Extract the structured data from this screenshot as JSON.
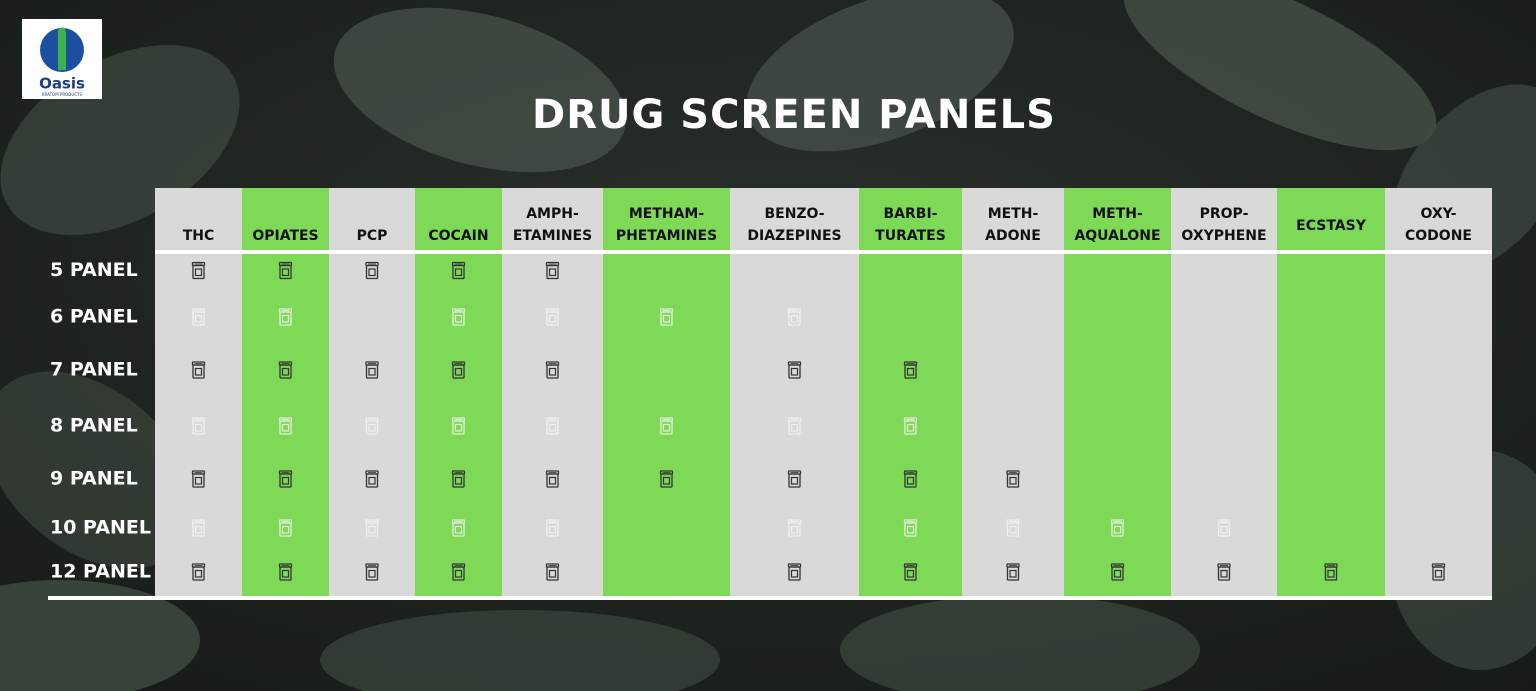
{
  "logo": {
    "name": "Oasis",
    "tagline": "KRATOM PRODUCTS"
  },
  "title": "DRUG SCREEN PANELS",
  "colors": {
    "gray": "#d9d9d9",
    "green": "#7ed957"
  },
  "columns": [
    [
      "THC"
    ],
    [
      "OPIATES"
    ],
    [
      "PCP"
    ],
    [
      "COCAIN"
    ],
    [
      "AMPH-",
      "ETAMINES"
    ],
    [
      "METHAM-",
      "PHETAMINES"
    ],
    [
      "BENZO-",
      "DIAZEPINES"
    ],
    [
      "BARBI-",
      "TURATES"
    ],
    [
      "METH-",
      "ADONE"
    ],
    [
      "METH-",
      "AQUALONE"
    ],
    [
      "PROP-",
      "OXYPHENE"
    ],
    [
      "ECSTASY"
    ],
    [
      "OXY-",
      "CODONE"
    ]
  ],
  "rows": [
    {
      "label": "5 PANEL",
      "included": [
        true,
        true,
        true,
        true,
        true,
        false,
        false,
        false,
        false,
        false,
        false,
        false,
        false
      ]
    },
    {
      "label": "6 PANEL",
      "included": [
        true,
        true,
        false,
        true,
        true,
        true,
        true,
        false,
        false,
        false,
        false,
        false,
        false
      ]
    },
    {
      "label": "7 PANEL",
      "included": [
        true,
        true,
        true,
        true,
        true,
        false,
        true,
        true,
        false,
        false,
        false,
        false,
        false
      ]
    },
    {
      "label": "8 PANEL",
      "included": [
        true,
        true,
        true,
        true,
        true,
        true,
        true,
        true,
        false,
        false,
        false,
        false,
        false
      ]
    },
    {
      "label": "9 PANEL",
      "included": [
        true,
        true,
        true,
        true,
        true,
        true,
        true,
        true,
        true,
        false,
        false,
        false,
        false
      ]
    },
    {
      "label": "10 PANEL",
      "included": [
        true,
        true,
        true,
        true,
        true,
        false,
        true,
        true,
        true,
        true,
        true,
        false,
        false
      ]
    },
    {
      "label": "12 PANEL",
      "included": [
        true,
        true,
        true,
        true,
        true,
        false,
        true,
        true,
        true,
        true,
        true,
        true,
        true
      ]
    }
  ]
}
